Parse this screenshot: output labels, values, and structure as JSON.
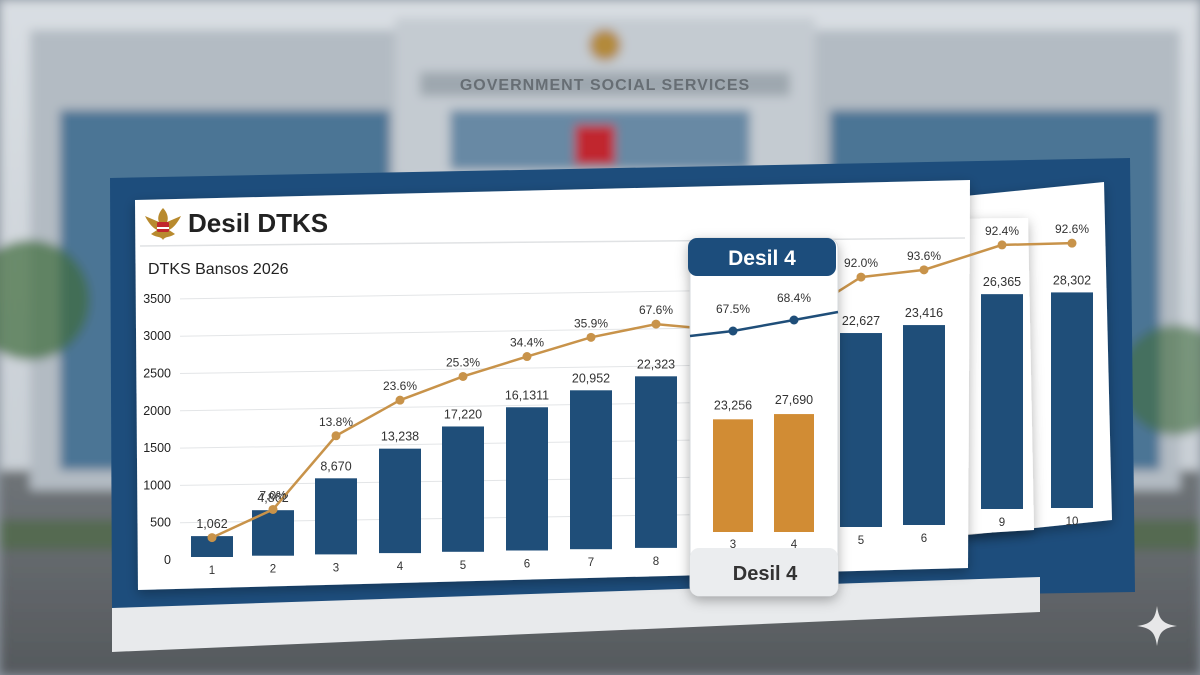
{
  "scene": {
    "building_sign": "GOVERNMENT SOCIAL SERVICES"
  },
  "card": {
    "title": "Desil DTKS",
    "emblem": "garuda-emblem-icon"
  },
  "callout": {
    "top_label": "Desil 4",
    "bottom_label": "Desil 4"
  },
  "colors": {
    "bar": "#1f4e79",
    "bar_highlight": "#d18c34",
    "line_main": "#c8934a",
    "line_highlight": "#1f4e79"
  },
  "chart_data": {
    "type": "bar",
    "title": "DTKS Bansos 2026",
    "xlabel": "",
    "ylabel": "",
    "ylim": [
      0,
      3500
    ],
    "yticks": [
      0,
      500,
      1000,
      1500,
      2000,
      2500,
      3000,
      3500
    ],
    "grid": true,
    "main_panel": {
      "categories": [
        "1",
        "2",
        "3",
        "4",
        "5",
        "6",
        "7",
        "8"
      ],
      "bar_values": [
        280,
        610,
        1020,
        1400,
        1680,
        1920,
        2130,
        2300
      ],
      "bar_labels": [
        "1,062",
        "4,862",
        "8,670",
        "13,238",
        "17,220",
        "16,1311",
        "20,952",
        "22,323"
      ],
      "line_values": [
        260,
        620,
        1590,
        2050,
        2350,
        2600,
        2840,
        3000
      ],
      "line_labels": [
        "",
        "7.0%",
        "13.8%",
        "23.6%",
        "25.3%",
        "34.4%",
        "35.9%",
        "67.6%"
      ]
    },
    "highlight_panel": {
      "categories": [
        "3",
        "4"
      ],
      "bar_values": [
        2360,
        2470
      ],
      "bar_labels": [
        "23,256",
        "27,690"
      ],
      "line_values": [
        3050,
        3200
      ],
      "line_labels": [
        "67.5%",
        "68.4%"
      ]
    },
    "back_panel": {
      "categories": [
        "5",
        "6"
      ],
      "bar_values": [
        2600,
        2680
      ],
      "bar_labels": [
        "22,627",
        "23,416"
      ],
      "line_values": [
        3350,
        3420
      ],
      "line_labels": [
        "92.0%",
        "93.6%"
      ]
    },
    "far_panel": {
      "categories": [
        "9",
        "10"
      ],
      "bar_values": [
        2880,
        2890
      ],
      "bar_labels": [
        "26,365",
        "28,302"
      ],
      "line_values": [
        3540,
        3550
      ],
      "line_labels": [
        "92.4%",
        "92.6%"
      ]
    }
  }
}
